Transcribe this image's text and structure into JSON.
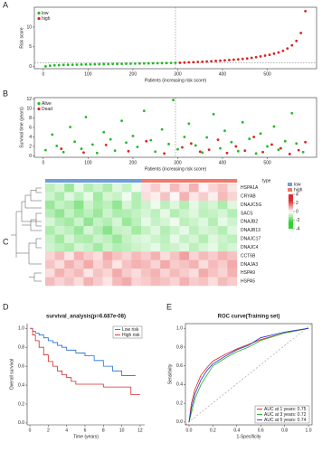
{
  "chart_data": [
    {
      "panel": "A",
      "type": "scatter",
      "ylabel": "Risk score",
      "xlabel": "Patients (increasing risk score)",
      "xlim": [
        -20,
        610
      ],
      "ylim": [
        -0.5,
        15
      ],
      "xticks": [
        0,
        100,
        200,
        300,
        400,
        500
      ],
      "yticks": [
        0,
        5,
        10
      ],
      "cutoff_x": 295,
      "cutoff_y": 1,
      "legend": "top-left",
      "series": [
        {
          "name": "low",
          "color": "#22bb22",
          "x": [
            5,
            15,
            25,
            35,
            45,
            55,
            65,
            75,
            85,
            95,
            105,
            115,
            125,
            135,
            145,
            155,
            165,
            175,
            185,
            195,
            205,
            215,
            225,
            235,
            245,
            255,
            265,
            275,
            285,
            295
          ],
          "values": [
            0.1,
            0.25,
            0.35,
            0.4,
            0.45,
            0.48,
            0.5,
            0.52,
            0.55,
            0.57,
            0.59,
            0.61,
            0.63,
            0.65,
            0.67,
            0.69,
            0.71,
            0.73,
            0.75,
            0.77,
            0.79,
            0.81,
            0.83,
            0.85,
            0.87,
            0.89,
            0.91,
            0.93,
            0.95,
            0.97
          ]
        },
        {
          "name": "high",
          "color": "#dd2222",
          "x": [
            305,
            315,
            325,
            335,
            345,
            355,
            365,
            375,
            385,
            395,
            405,
            415,
            425,
            435,
            445,
            455,
            465,
            475,
            485,
            495,
            505,
            515,
            525,
            535,
            545,
            555,
            565,
            575,
            585
          ],
          "values": [
            1.0,
            1.05,
            1.1,
            1.15,
            1.2,
            1.26,
            1.32,
            1.38,
            1.45,
            1.52,
            1.6,
            1.68,
            1.77,
            1.87,
            1.98,
            2.1,
            2.24,
            2.4,
            2.6,
            2.8,
            3.0,
            3.3,
            3.6,
            4.0,
            4.6,
            5.4,
            6.5,
            8.5,
            14
          ]
        }
      ]
    },
    {
      "panel": "B",
      "type": "scatter",
      "ylabel": "Survival time (years)",
      "xlabel": "Patients (increasing risk score)",
      "xlim": [
        -20,
        610
      ],
      "ylim": [
        -0.3,
        12.3
      ],
      "xticks": [
        0,
        100,
        200,
        300,
        400,
        500
      ],
      "yticks": [
        0,
        2,
        4,
        6,
        8,
        10,
        12
      ],
      "cutoff_x": 295,
      "legend": "top-left",
      "series": [
        {
          "name": "Alive",
          "color": "#22bb22",
          "x": [
            5,
            20,
            30,
            45,
            60,
            70,
            85,
            95,
            110,
            120,
            135,
            150,
            160,
            175,
            185,
            200,
            210,
            225,
            240,
            250,
            265,
            280,
            290,
            300,
            315,
            325,
            340,
            355,
            365,
            380,
            395,
            405,
            420,
            435,
            445,
            460,
            475,
            485,
            500,
            515,
            525,
            540,
            555,
            565,
            580
          ],
          "values": [
            1.2,
            4.5,
            2.1,
            0.8,
            6.1,
            3.0,
            1.5,
            8.2,
            2.4,
            0.6,
            5.0,
            3.5,
            1.1,
            7.4,
            2.8,
            4.2,
            1.9,
            9.5,
            3.3,
            0.9,
            5.6,
            2.5,
            11.8,
            1.4,
            4.0,
            6.8,
            2.2,
            0.7,
            3.9,
            8.8,
            1.6,
            5.3,
            2.9,
            1.0,
            7.1,
            3.6,
            0.5,
            4.7,
            2.0,
            6.2,
            1.3,
            3.1,
            9.0,
            2.6,
            0.8
          ]
        },
        {
          "name": "Dead",
          "color": "#dd2222",
          "x": [
            40,
            90,
            140,
            190,
            230,
            270,
            310,
            330,
            350,
            370,
            390,
            410,
            430,
            450,
            470,
            490,
            510,
            530,
            550,
            570,
            585
          ],
          "values": [
            1.5,
            0.7,
            2.3,
            1.0,
            3.1,
            0.5,
            1.8,
            2.6,
            0.9,
            1.3,
            3.4,
            0.6,
            2.0,
            1.1,
            4.0,
            0.8,
            2.4,
            1.6,
            0.4,
            1.2,
            2.9
          ]
        }
      ]
    },
    {
      "panel": "C",
      "type": "heatmap",
      "legend_title": "type",
      "rows": [
        "HSPA1A",
        "CRYAB",
        "DNAJC5G",
        "SACS",
        "DNAJB2",
        "DNAJB13",
        "DNAJC17",
        "DNAJC4",
        "CCT6B",
        "DNAJA3",
        "HSPA9",
        "HSPA5"
      ],
      "groups": [
        {
          "name": "low",
          "color": "#6f9fd8"
        },
        {
          "name": "high",
          "color": "#f07a6a"
        }
      ],
      "column_group": [
        0,
        0,
        0,
        0,
        0,
        0,
        0,
        0,
        0,
        0,
        1,
        1,
        1,
        1,
        1,
        1,
        1,
        1,
        1,
        1
      ],
      "low_color": "#2fcf2f",
      "high_color": "#e02a2a",
      "clim": [
        -4,
        4
      ],
      "cticks": [
        4,
        2,
        0,
        -2,
        -4
      ],
      "values": [
        [
          -0.8,
          -0.5,
          -1.2,
          -0.3,
          -0.9,
          -0.6,
          -1.0,
          -0.4,
          -0.7,
          -0.2,
          0.3,
          0.6,
          0.2,
          0.8,
          0.4,
          0.9,
          0.1,
          0.5,
          0.7,
          0.3
        ],
        [
          -0.6,
          -1.0,
          -0.4,
          -0.8,
          -0.3,
          -1.1,
          -0.5,
          -0.7,
          -0.2,
          -0.9,
          0.4,
          0.2,
          0.7,
          0.1,
          0.9,
          0.3,
          0.6,
          0.2,
          0.8,
          0.5
        ],
        [
          -1.2,
          -0.7,
          -0.9,
          -1.4,
          -0.6,
          -1.0,
          -0.8,
          -1.3,
          -0.5,
          -0.9,
          -0.6,
          -0.2,
          -0.8,
          -0.4,
          -0.9,
          -0.3,
          -0.7,
          -0.5,
          -1.0,
          -0.4
        ],
        [
          -0.9,
          -1.3,
          -0.7,
          -1.1,
          -0.8,
          -1.2,
          -0.6,
          -1.0,
          -0.9,
          -0.7,
          -0.5,
          -0.8,
          -0.3,
          -0.9,
          -0.6,
          -0.4,
          -0.8,
          -0.7,
          -0.5,
          -0.9
        ],
        [
          -0.5,
          -0.9,
          -1.1,
          -0.6,
          -1.3,
          -0.7,
          -0.9,
          -0.5,
          -1.2,
          -0.8,
          -0.3,
          -0.7,
          -0.5,
          -0.2,
          -0.8,
          -0.6,
          -0.4,
          -0.9,
          -0.3,
          -0.6
        ],
        [
          -1.0,
          -0.6,
          -0.8,
          -1.2,
          -0.5,
          -0.9,
          -1.4,
          -0.7,
          -0.6,
          -1.1,
          -0.7,
          -0.4,
          -0.9,
          -0.6,
          -0.3,
          -0.8,
          -0.5,
          -0.6,
          -0.9,
          -0.4
        ],
        [
          -0.7,
          -1.1,
          -0.5,
          -0.9,
          -1.0,
          -0.6,
          -0.8,
          -1.2,
          -0.7,
          -0.5,
          -0.4,
          -0.6,
          -0.8,
          -0.3,
          -0.7,
          -0.5,
          -0.9,
          -0.4,
          -0.6,
          -0.8
        ],
        [
          -0.6,
          -0.8,
          -1.0,
          -0.5,
          -0.7,
          -1.1,
          -0.6,
          -0.9,
          -0.8,
          -0.6,
          -0.5,
          -0.3,
          -0.7,
          -0.6,
          -0.4,
          -0.8,
          -0.5,
          -0.3,
          -0.7,
          -0.5
        ],
        [
          0.5,
          0.8,
          0.3,
          0.9,
          0.6,
          0.4,
          1.0,
          0.7,
          0.5,
          0.8,
          0.6,
          0.9,
          0.4,
          0.7,
          1.1,
          0.5,
          0.8,
          0.6,
          0.9,
          0.7
        ],
        [
          0.7,
          0.4,
          0.9,
          0.6,
          1.0,
          0.5,
          0.8,
          0.3,
          0.7,
          0.9,
          0.8,
          0.5,
          1.0,
          0.6,
          0.7,
          0.9,
          0.4,
          0.8,
          0.6,
          1.0
        ],
        [
          0.4,
          0.9,
          0.6,
          0.8,
          0.3,
          0.7,
          0.5,
          1.0,
          0.6,
          0.4,
          0.7,
          0.9,
          0.5,
          0.8,
          0.6,
          0.4,
          1.0,
          0.7,
          0.5,
          0.9
        ],
        [
          0.8,
          0.5,
          0.7,
          0.4,
          0.9,
          0.6,
          0.3,
          0.8,
          1.0,
          0.5,
          0.6,
          0.8,
          0.7,
          0.5,
          0.9,
          0.6,
          0.7,
          0.4,
          0.8,
          0.6
        ]
      ]
    },
    {
      "panel": "D",
      "type": "step",
      "title": "survival_analysis(p=6.687e-08)",
      "ylabel": "Overall survival",
      "xlabel": "Time (years)",
      "xlim": [
        -0.3,
        12.5
      ],
      "ylim": [
        -0.02,
        1.05
      ],
      "xticks": [
        0,
        2,
        4,
        6,
        8,
        10,
        12
      ],
      "yticks": [
        {
          "value": 0,
          "label": "0.0"
        },
        0.2,
        0.4,
        0.6,
        0.8,
        {
          "value": 1,
          "label": "1.0"
        }
      ],
      "legend": "top-right",
      "series": [
        {
          "name": "Low risk",
          "color": "#1f6fd0",
          "x": [
            0,
            0.3,
            0.6,
            1,
            1.5,
            2,
            2.5,
            3,
            3.5,
            4,
            5,
            6,
            7,
            8,
            9,
            10,
            11.5
          ],
          "values": [
            1,
            0.97,
            0.95,
            0.93,
            0.9,
            0.87,
            0.85,
            0.82,
            0.8,
            0.77,
            0.74,
            0.71,
            0.66,
            0.6,
            0.55,
            0.5,
            0.5
          ]
        },
        {
          "name": "High risk",
          "color": "#d42a2a",
          "x": [
            0,
            0.3,
            0.6,
            1,
            1.5,
            2,
            2.5,
            3,
            3.5,
            4,
            4.5,
            5,
            6,
            7,
            8,
            9,
            10,
            11,
            12
          ],
          "values": [
            1,
            0.93,
            0.87,
            0.8,
            0.72,
            0.65,
            0.6,
            0.55,
            0.51,
            0.48,
            0.44,
            0.41,
            0.41,
            0.41,
            0.38,
            0.38,
            0.38,
            0.3,
            0.3
          ]
        }
      ]
    },
    {
      "panel": "E",
      "type": "line",
      "title": "ROC curve(Training set)",
      "ylabel": "Sensitivity",
      "xlabel": "1-Specificity",
      "xlim": [
        -0.03,
        1.03
      ],
      "ylim": [
        -0.03,
        1.05
      ],
      "xticks": [
        {
          "value": 0,
          "label": "0.0"
        },
        0.2,
        0.4,
        0.6,
        0.8,
        {
          "value": 1,
          "label": "1.0"
        }
      ],
      "yticks": [
        {
          "value": 0,
          "label": "0.0"
        },
        0.2,
        0.4,
        0.6,
        0.8,
        {
          "value": 1,
          "label": "1.0"
        }
      ],
      "legend": "bottom-right",
      "series": [
        {
          "name": "AUC at 1 years: 0.75",
          "color": "#e02020",
          "x": [
            0,
            0.02,
            0.05,
            0.1,
            0.15,
            0.2,
            0.3,
            0.4,
            0.5,
            0.6,
            0.8,
            1
          ],
          "values": [
            0,
            0.2,
            0.35,
            0.5,
            0.58,
            0.65,
            0.72,
            0.78,
            0.83,
            0.88,
            0.95,
            1
          ]
        },
        {
          "name": "AUC at 3 years: 0.72",
          "color": "#22b022",
          "x": [
            0,
            0.02,
            0.05,
            0.1,
            0.15,
            0.2,
            0.3,
            0.4,
            0.5,
            0.6,
            0.8,
            1
          ],
          "values": [
            0,
            0.1,
            0.25,
            0.4,
            0.5,
            0.6,
            0.68,
            0.75,
            0.8,
            0.87,
            0.95,
            1
          ]
        },
        {
          "name": "AUC at 5 years: 0.74",
          "color": "#2030d0",
          "x": [
            0,
            0.02,
            0.05,
            0.1,
            0.15,
            0.2,
            0.3,
            0.4,
            0.5,
            0.6,
            0.8,
            1
          ],
          "values": [
            0,
            0.15,
            0.3,
            0.45,
            0.55,
            0.62,
            0.7,
            0.77,
            0.82,
            0.9,
            0.96,
            1
          ]
        }
      ]
    }
  ]
}
